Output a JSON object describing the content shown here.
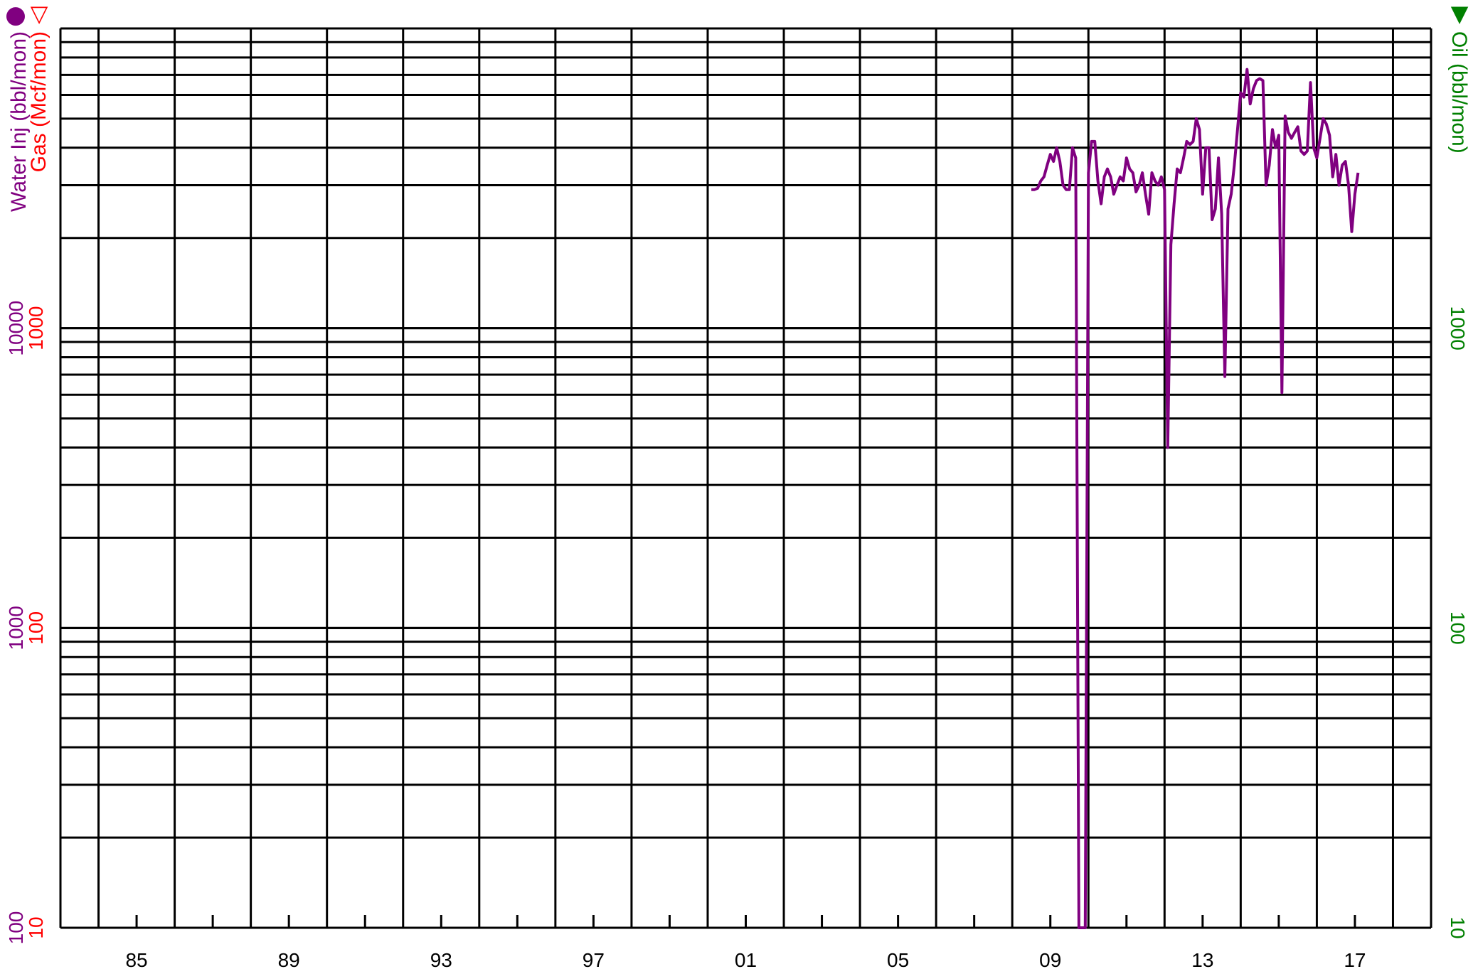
{
  "chart_data": {
    "type": "line",
    "x_axis": {
      "type": "date",
      "range": [
        "1983-01-01",
        "2019-01-01"
      ],
      "tick_labels": [
        "85",
        "89",
        "93",
        "97",
        "01",
        "05",
        "09",
        "13",
        "17"
      ],
      "major_ticks": [
        "1984-01-01",
        "1986-01-01",
        "1988-01-01",
        "1990-01-01",
        "1992-01-01",
        "1994-01-01",
        "1996-01-01",
        "1998-01-01",
        "2000-01-01",
        "2002-01-01",
        "2004-01-01",
        "2006-01-01",
        "2008-01-01",
        "2010-01-01",
        "2012-01-01",
        "2014-01-01",
        "2016-01-01",
        "2018-01-01"
      ]
    },
    "y_axes": {
      "water_inj": {
        "label": "Water Inj (bbl/mon)",
        "scale": "log",
        "range": [
          100,
          100000
        ],
        "ticks": [
          "100",
          "1000",
          "10000"
        ],
        "color": "#800080",
        "marker": "●"
      },
      "gas": {
        "label": "Gas (Mcf/mon)",
        "scale": "log",
        "range": [
          10,
          10000
        ],
        "ticks": [
          "10",
          "100",
          "1000"
        ],
        "color": "#ff0000",
        "marker": "▽"
      },
      "oil": {
        "label": "Oil (bbl/mon)",
        "scale": "log",
        "range": [
          10,
          10000
        ],
        "ticks": [
          "10",
          "100",
          "1000"
        ],
        "color": "#008000",
        "marker": "▼"
      }
    },
    "grid": true,
    "series": [
      {
        "axis": "water_inj",
        "color": "#800080",
        "points": [
          [
            "2008-07-01",
            29000
          ],
          [
            "2008-08-01",
            29000
          ],
          [
            "2008-09-01",
            29300
          ],
          [
            "2008-10-01",
            31000
          ],
          [
            "2008-11-01",
            32000
          ],
          [
            "2008-12-01",
            35000
          ],
          [
            "2009-01-01",
            38000
          ],
          [
            "2009-02-01",
            36000
          ],
          [
            "2009-03-01",
            40000
          ],
          [
            "2009-04-01",
            36000
          ],
          [
            "2009-05-01",
            30000
          ],
          [
            "2009-06-01",
            29000
          ],
          [
            "2009-07-01",
            29000
          ],
          [
            "2009-08-01",
            40000
          ],
          [
            "2009-09-01",
            37000
          ],
          [
            "2009-10-01",
            100
          ],
          [
            "2009-11-01",
            100
          ],
          [
            "2009-12-01",
            100
          ],
          [
            "2010-01-01",
            33000
          ],
          [
            "2010-02-01",
            42000
          ],
          [
            "2010-03-01",
            42000
          ],
          [
            "2010-04-01",
            31000
          ],
          [
            "2010-05-01",
            26000
          ],
          [
            "2010-06-01",
            32000
          ],
          [
            "2010-07-01",
            34000
          ],
          [
            "2010-08-01",
            32000
          ],
          [
            "2010-09-01",
            28000
          ],
          [
            "2010-10-01",
            30000
          ],
          [
            "2010-11-01",
            32000
          ],
          [
            "2010-12-01",
            31000
          ],
          [
            "2011-01-01",
            37000
          ],
          [
            "2011-02-01",
            34000
          ],
          [
            "2011-03-01",
            33000
          ],
          [
            "2011-04-01",
            28500
          ],
          [
            "2011-05-01",
            30000
          ],
          [
            "2011-06-01",
            33000
          ],
          [
            "2011-07-01",
            28000
          ],
          [
            "2011-08-01",
            24000
          ],
          [
            "2011-09-01",
            33000
          ],
          [
            "2011-10-01",
            31000
          ],
          [
            "2011-11-01",
            30000
          ],
          [
            "2011-12-01",
            32000
          ],
          [
            "2012-01-01",
            29000
          ],
          [
            "2012-02-01",
            4000
          ],
          [
            "2012-03-01",
            19000
          ],
          [
            "2012-04-01",
            26000
          ],
          [
            "2012-05-01",
            34000
          ],
          [
            "2012-06-01",
            33000
          ],
          [
            "2012-07-01",
            37000
          ],
          [
            "2012-08-01",
            42000
          ],
          [
            "2012-09-01",
            41000
          ],
          [
            "2012-10-01",
            42000
          ],
          [
            "2012-11-01",
            50000
          ],
          [
            "2012-12-01",
            46000
          ],
          [
            "2013-01-01",
            28000
          ],
          [
            "2013-02-01",
            40000
          ],
          [
            "2013-03-01",
            40000
          ],
          [
            "2013-04-01",
            23000
          ],
          [
            "2013-05-01",
            25000
          ],
          [
            "2013-06-01",
            37000
          ],
          [
            "2013-07-01",
            24000
          ],
          [
            "2013-08-01",
            6900
          ],
          [
            "2013-09-01",
            25000
          ],
          [
            "2013-10-01",
            28000
          ],
          [
            "2013-11-01",
            35000
          ],
          [
            "2013-12-01",
            46000
          ],
          [
            "2014-01-01",
            61000
          ],
          [
            "2014-02-01",
            59000
          ],
          [
            "2014-03-01",
            73000
          ],
          [
            "2014-04-01",
            56000
          ],
          [
            "2014-05-01",
            63000
          ],
          [
            "2014-06-01",
            67000
          ],
          [
            "2014-07-01",
            68000
          ],
          [
            "2014-08-01",
            67000
          ],
          [
            "2014-09-01",
            30000
          ],
          [
            "2014-10-01",
            35000
          ],
          [
            "2014-11-01",
            46000
          ],
          [
            "2014-12-01",
            40000
          ],
          [
            "2015-01-01",
            44000
          ],
          [
            "2015-02-01",
            6100
          ],
          [
            "2015-03-01",
            51000
          ],
          [
            "2015-04-01",
            45000
          ],
          [
            "2015-05-01",
            43000
          ],
          [
            "2015-06-01",
            45000
          ],
          [
            "2015-07-01",
            47000
          ],
          [
            "2015-08-01",
            39000
          ],
          [
            "2015-09-01",
            38000
          ],
          [
            "2015-10-01",
            39000
          ],
          [
            "2015-11-01",
            66000
          ],
          [
            "2015-12-01",
            40000
          ],
          [
            "2016-01-01",
            37000
          ],
          [
            "2016-02-01",
            43000
          ],
          [
            "2016-03-01",
            50000
          ],
          [
            "2016-04-01",
            48000
          ],
          [
            "2016-05-01",
            44000
          ],
          [
            "2016-06-01",
            32000
          ],
          [
            "2016-07-01",
            38000
          ],
          [
            "2016-08-01",
            30000
          ],
          [
            "2016-09-01",
            35000
          ],
          [
            "2016-10-01",
            36000
          ],
          [
            "2016-11-01",
            30000
          ],
          [
            "2016-12-01",
            21000
          ],
          [
            "2017-01-01",
            28000
          ],
          [
            "2017-02-01",
            33000
          ]
        ]
      }
    ]
  }
}
